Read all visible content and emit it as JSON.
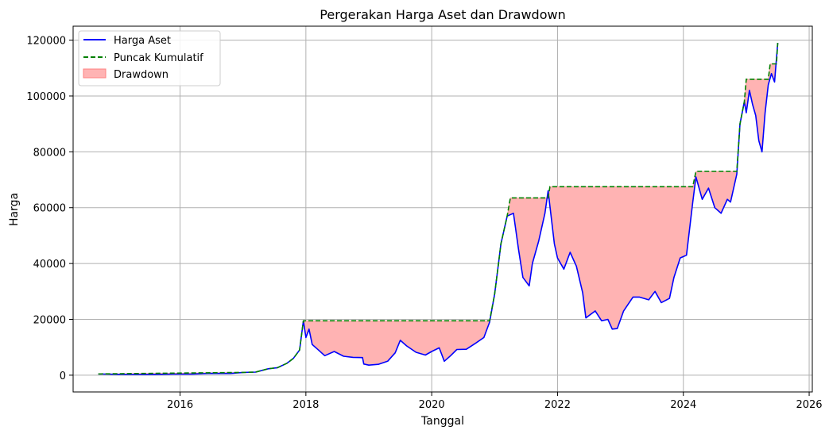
{
  "chart_data": {
    "type": "line",
    "title": "Pergerakan Harga Aset dan Drawdown",
    "xlabel": "Tanggal",
    "ylabel": "Harga",
    "xlim": [
      2014.3,
      2026.05
    ],
    "ylim": [
      -6000,
      125000
    ],
    "x_ticks": [
      2016,
      2018,
      2020,
      2022,
      2024,
      2026
    ],
    "x_tick_labels": [
      "2016",
      "2018",
      "2020",
      "2022",
      "2024",
      "2026"
    ],
    "y_ticks": [
      0,
      20000,
      40000,
      60000,
      80000,
      100000,
      120000
    ],
    "y_tick_labels": [
      "0",
      "20000",
      "40000",
      "60000",
      "80000",
      "100000",
      "120000"
    ],
    "grid": true,
    "legend_position": "top-left",
    "colors": {
      "price": "#0000ff",
      "peak": "#008000",
      "drawdown": "#ffb3b3",
      "drawdown_edge": "#ff8080",
      "grid": "#b0b0b0"
    },
    "series": [
      {
        "name": "Harga Aset",
        "style": "solid",
        "points": [
          [
            2014.7,
            460
          ],
          [
            2015.0,
            320
          ],
          [
            2015.3,
            240
          ],
          [
            2015.6,
            280
          ],
          [
            2015.9,
            400
          ],
          [
            2016.2,
            420
          ],
          [
            2016.5,
            650
          ],
          [
            2016.8,
            610
          ],
          [
            2017.0,
            1000
          ],
          [
            2017.2,
            1100
          ],
          [
            2017.4,
            2300
          ],
          [
            2017.55,
            2700
          ],
          [
            2017.7,
            4300
          ],
          [
            2017.8,
            6000
          ],
          [
            2017.9,
            9000
          ],
          [
            2017.96,
            19500
          ],
          [
            2018.0,
            13500
          ],
          [
            2018.05,
            16500
          ],
          [
            2018.1,
            11000
          ],
          [
            2018.2,
            9000
          ],
          [
            2018.3,
            7000
          ],
          [
            2018.45,
            8500
          ],
          [
            2018.6,
            6800
          ],
          [
            2018.75,
            6400
          ],
          [
            2018.9,
            6300
          ],
          [
            2018.92,
            4000
          ],
          [
            2019.0,
            3600
          ],
          [
            2019.15,
            3900
          ],
          [
            2019.3,
            5000
          ],
          [
            2019.42,
            8000
          ],
          [
            2019.5,
            12500
          ],
          [
            2019.6,
            10500
          ],
          [
            2019.75,
            8200
          ],
          [
            2019.9,
            7200
          ],
          [
            2020.0,
            8500
          ],
          [
            2020.12,
            9800
          ],
          [
            2020.2,
            5000
          ],
          [
            2020.3,
            7000
          ],
          [
            2020.4,
            9200
          ],
          [
            2020.55,
            9300
          ],
          [
            2020.7,
            11500
          ],
          [
            2020.83,
            13500
          ],
          [
            2020.92,
            19000
          ],
          [
            2021.0,
            29000
          ],
          [
            2021.05,
            38000
          ],
          [
            2021.1,
            47000
          ],
          [
            2021.2,
            57000
          ],
          [
            2021.3,
            58000
          ],
          [
            2021.38,
            45000
          ],
          [
            2021.45,
            35000
          ],
          [
            2021.55,
            32000
          ],
          [
            2021.6,
            40000
          ],
          [
            2021.7,
            48000
          ],
          [
            2021.8,
            58000
          ],
          [
            2021.85,
            66000
          ],
          [
            2021.95,
            47000
          ],
          [
            2022.0,
            42000
          ],
          [
            2022.1,
            38000
          ],
          [
            2022.2,
            44000
          ],
          [
            2022.3,
            39000
          ],
          [
            2022.4,
            29500
          ],
          [
            2022.45,
            20500
          ],
          [
            2022.6,
            23000
          ],
          [
            2022.7,
            19500
          ],
          [
            2022.8,
            20000
          ],
          [
            2022.87,
            16500
          ],
          [
            2022.95,
            16700
          ],
          [
            2023.05,
            23000
          ],
          [
            2023.2,
            28000
          ],
          [
            2023.3,
            28000
          ],
          [
            2023.45,
            27000
          ],
          [
            2023.55,
            30000
          ],
          [
            2023.65,
            26000
          ],
          [
            2023.78,
            27500
          ],
          [
            2023.85,
            35000
          ],
          [
            2023.95,
            42000
          ],
          [
            2024.05,
            43000
          ],
          [
            2024.15,
            62000
          ],
          [
            2024.2,
            71000
          ],
          [
            2024.3,
            63000
          ],
          [
            2024.4,
            67000
          ],
          [
            2024.5,
            60000
          ],
          [
            2024.6,
            58000
          ],
          [
            2024.7,
            63000
          ],
          [
            2024.75,
            62000
          ],
          [
            2024.85,
            72000
          ],
          [
            2024.9,
            90000
          ],
          [
            2024.97,
            98000
          ],
          [
            2025.0,
            94000
          ],
          [
            2025.05,
            102000
          ],
          [
            2025.1,
            97000
          ],
          [
            2025.15,
            93000
          ],
          [
            2025.2,
            84000
          ],
          [
            2025.25,
            80000
          ],
          [
            2025.3,
            94000
          ],
          [
            2025.35,
            104000
          ],
          [
            2025.4,
            108000
          ],
          [
            2025.45,
            105000
          ],
          [
            2025.5,
            119000
          ]
        ]
      },
      {
        "name": "Puncak Kumulatif",
        "style": "dashed",
        "points": [
          [
            2014.7,
            460
          ],
          [
            2017.0,
            1000
          ],
          [
            2017.2,
            1100
          ],
          [
            2017.4,
            2300
          ],
          [
            2017.55,
            2700
          ],
          [
            2017.7,
            4300
          ],
          [
            2017.8,
            6000
          ],
          [
            2017.9,
            9000
          ],
          [
            2017.96,
            19500
          ],
          [
            2020.92,
            19500
          ],
          [
            2021.0,
            29000
          ],
          [
            2021.05,
            38000
          ],
          [
            2021.1,
            47000
          ],
          [
            2021.2,
            57000
          ],
          [
            2021.25,
            63500
          ],
          [
            2021.85,
            63500
          ],
          [
            2021.88,
            67500
          ],
          [
            2024.15,
            67500
          ],
          [
            2024.2,
            73000
          ],
          [
            2024.85,
            73000
          ],
          [
            2024.9,
            90000
          ],
          [
            2024.97,
            98000
          ],
          [
            2025.0,
            106000
          ],
          [
            2025.35,
            106000
          ],
          [
            2025.38,
            111500
          ],
          [
            2025.48,
            111500
          ],
          [
            2025.5,
            119000
          ]
        ]
      }
    ],
    "fill_between": {
      "name": "Drawdown",
      "upper_series": "Puncak Kumulatif",
      "lower_series": "Harga Aset"
    }
  }
}
